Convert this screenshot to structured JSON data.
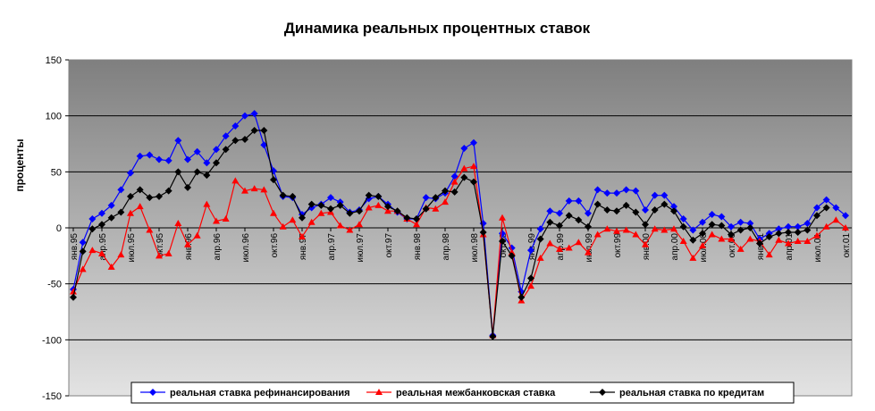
{
  "chart_data": {
    "type": "line",
    "title": "Динамика реальных процентных ставок",
    "xlabel": "",
    "ylabel": "проценты",
    "ylim": [
      -150,
      150
    ],
    "yticks": [
      150,
      100,
      50,
      0,
      -50,
      -100,
      -150
    ],
    "grid": true,
    "legend_position": "bottom",
    "x_tick_labels": [
      {
        "index": 0,
        "label": "янв.95"
      },
      {
        "index": 3,
        "label": "апр.95"
      },
      {
        "index": 6,
        "label": "июл.95"
      },
      {
        "index": 9,
        "label": "окт.95"
      },
      {
        "index": 12,
        "label": "янв.96"
      },
      {
        "index": 15,
        "label": "апр.96"
      },
      {
        "index": 18,
        "label": "июл.96"
      },
      {
        "index": 21,
        "label": "окт.96"
      },
      {
        "index": 24,
        "label": "янв.97"
      },
      {
        "index": 27,
        "label": "апр.97"
      },
      {
        "index": 30,
        "label": "июл.97"
      },
      {
        "index": 33,
        "label": "окт.97"
      },
      {
        "index": 36,
        "label": "янв.98"
      },
      {
        "index": 39,
        "label": "апр.98"
      },
      {
        "index": 42,
        "label": "июл.98"
      },
      {
        "index": 45,
        "label": "окт.98"
      },
      {
        "index": 48,
        "label": "янв.99"
      },
      {
        "index": 51,
        "label": "апр.99"
      },
      {
        "index": 54,
        "label": "июл.99"
      },
      {
        "index": 57,
        "label": "окт.99"
      },
      {
        "index": 60,
        "label": "янв.00"
      },
      {
        "index": 63,
        "label": "апр.00"
      },
      {
        "index": 66,
        "label": "июл.00"
      },
      {
        "index": 69,
        "label": "окт.00"
      },
      {
        "index": 72,
        "label": "янв.01"
      },
      {
        "index": 75,
        "label": "апр.01"
      },
      {
        "index": 78,
        "label": "июл.01"
      },
      {
        "index": 81,
        "label": "окт.01"
      }
    ],
    "series": [
      {
        "name": "реальная ставка рефинансирования",
        "color": "#0000ff",
        "marker": "diamond",
        "values": [
          -55,
          -13,
          8,
          13,
          20,
          34,
          49,
          64,
          65,
          61,
          60,
          78,
          61,
          68,
          58,
          70,
          82,
          91,
          100,
          102,
          74,
          51,
          28,
          27,
          12,
          18,
          21,
          27,
          23,
          14,
          16,
          26,
          28,
          21,
          14,
          8,
          8,
          27,
          26,
          31,
          46,
          71,
          76,
          4,
          -96,
          -5,
          -18,
          -57,
          -20,
          -1,
          15,
          13,
          24,
          24,
          13,
          34,
          31,
          31,
          34,
          33,
          16,
          29,
          29,
          19,
          8,
          -2,
          5,
          12,
          10,
          1,
          5,
          4,
          -10,
          -5,
          -1,
          1,
          1,
          4,
          18,
          25,
          18,
          11
        ]
      },
      {
        "name": "реальная межбанковская ставка",
        "color": "#ff0000",
        "marker": "triangle",
        "values": [
          -57,
          -37,
          -20,
          -23,
          -35,
          -24,
          13,
          19,
          -2,
          -25,
          -23,
          4,
          -15,
          -7,
          21,
          6,
          8,
          42,
          33,
          35,
          34,
          13,
          1,
          7,
          -8,
          5,
          13,
          14,
          2,
          -2,
          3,
          18,
          20,
          15,
          15,
          8,
          3,
          18,
          17,
          23,
          41,
          53,
          55,
          -6,
          -96,
          9,
          -22,
          -65,
          -52,
          -27,
          -14,
          -19,
          -18,
          -13,
          -22,
          -6,
          -1,
          -3,
          -2,
          -6,
          -15,
          -1,
          -2,
          -1,
          -12,
          -27,
          -16,
          -6,
          -10,
          -10,
          -19,
          -10,
          -12,
          -24,
          -11,
          -14,
          -12,
          -12,
          -7,
          1,
          7,
          0,
          null
        ]
      },
      {
        "name": "реальная ставка по кредитам",
        "color": "#000000",
        "marker": "diamond",
        "values": [
          -62,
          -21,
          -1,
          3,
          9,
          14,
          28,
          34,
          27,
          28,
          33,
          50,
          36,
          50,
          47,
          58,
          70,
          78,
          79,
          87,
          87,
          43,
          29,
          28,
          9,
          21,
          20,
          17,
          20,
          13,
          15,
          29,
          28,
          19,
          15,
          9,
          8,
          17,
          27,
          33,
          32,
          45,
          41,
          -4,
          -97,
          -12,
          -25,
          -62,
          -45,
          -10,
          5,
          2,
          11,
          7,
          1,
          21,
          16,
          15,
          20,
          14,
          3,
          16,
          21,
          15,
          1,
          -11,
          -5,
          3,
          2,
          -6,
          -2,
          0,
          -14,
          -8,
          -5,
          -4,
          -4,
          -2,
          11,
          18,
          null,
          null
        ]
      }
    ]
  }
}
